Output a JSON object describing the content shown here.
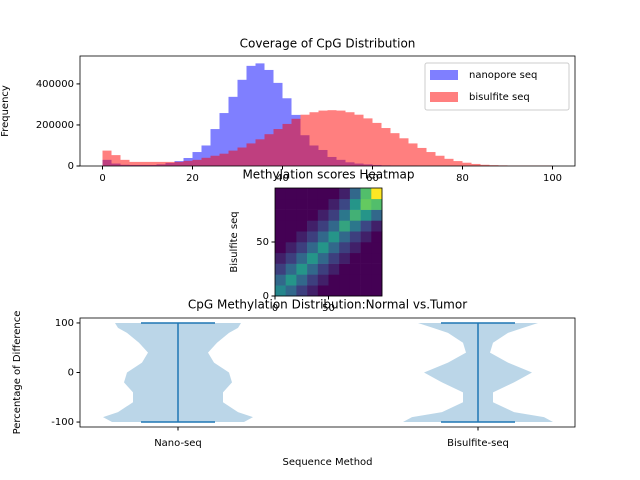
{
  "chart_data": [
    {
      "type": "histogram",
      "title": "Coverage of CpG Distribution",
      "xlabel": "Coverage of CpGs",
      "ylabel": "Frequency",
      "bins": [
        0,
        2,
        4,
        6,
        8,
        10,
        12,
        14,
        16,
        18,
        20,
        22,
        24,
        26,
        28,
        30,
        32,
        34,
        36,
        38,
        40,
        42,
        44,
        46,
        48,
        50,
        52,
        54,
        56,
        58,
        60,
        62,
        64,
        66,
        68,
        70,
        72,
        74,
        76,
        78,
        80,
        82,
        84,
        86,
        88,
        90,
        92,
        94,
        96,
        98,
        100
      ],
      "series": [
        {
          "name": "nanopore seq",
          "color": "blue",
          "values": [
            30000,
            12000,
            6000,
            5000,
            5000,
            5000,
            8000,
            15000,
            24000,
            39000,
            68000,
            100000,
            180000,
            258000,
            337000,
            420000,
            488000,
            500000,
            468000,
            405000,
            330000,
            249000,
            150000,
            100000,
            78000,
            44000,
            30000,
            18000,
            12000,
            8000,
            5000,
            3000,
            2000,
            1000,
            1000,
            0,
            0,
            0,
            0,
            0,
            0,
            0,
            0,
            0,
            0,
            0,
            0,
            0,
            0,
            0
          ]
        },
        {
          "name": "bisulfite seq",
          "color": "red",
          "values": [
            75000,
            53000,
            30000,
            20000,
            20000,
            20000,
            20000,
            20000,
            20000,
            25000,
            30000,
            40000,
            50000,
            60000,
            75000,
            90000,
            110000,
            130000,
            155000,
            180000,
            205000,
            230000,
            250000,
            262000,
            270000,
            272000,
            270000,
            262000,
            250000,
            232000,
            210000,
            185000,
            160000,
            135000,
            110000,
            88000,
            68000,
            50000,
            35000,
            24000,
            16000,
            10000,
            6000,
            4000,
            3000,
            2000,
            2000,
            2000,
            2000,
            2000
          ]
        }
      ],
      "xlim": [
        -5,
        105
      ],
      "xticks": [
        0,
        20,
        40,
        60,
        80,
        100
      ],
      "ylim": [
        0,
        536000
      ],
      "yticks": [
        0,
        200000,
        400000
      ],
      "legend": "upper right"
    },
    {
      "type": "heatmap",
      "title": "Methylation scores Heatmap",
      "ylabel": "Bisulfite seq",
      "xlim": [
        0,
        100
      ],
      "xticks": [
        0,
        50
      ],
      "ylim": [
        0,
        100
      ],
      "yticks": [
        0,
        50
      ],
      "z": [
        [
          0.5,
          0.4,
          0.28,
          0.2,
          0.12,
          0.12,
          0.12,
          0.12,
          0.12,
          0.12
        ],
        [
          0.4,
          0.55,
          0.4,
          0.28,
          0.2,
          0.12,
          0.12,
          0.12,
          0.12,
          0.12
        ],
        [
          0.28,
          0.4,
          0.55,
          0.4,
          0.28,
          0.2,
          0.12,
          0.12,
          0.12,
          0.12
        ],
        [
          0.2,
          0.28,
          0.4,
          0.55,
          0.4,
          0.28,
          0.2,
          0.12,
          0.12,
          0.12
        ],
        [
          0.12,
          0.2,
          0.28,
          0.4,
          0.55,
          0.4,
          0.28,
          0.2,
          0.12,
          0.12
        ],
        [
          0.12,
          0.12,
          0.2,
          0.28,
          0.4,
          0.55,
          0.4,
          0.28,
          0.2,
          0.12
        ],
        [
          0.12,
          0.12,
          0.12,
          0.2,
          0.28,
          0.4,
          0.6,
          0.45,
          0.3,
          0.2
        ],
        [
          0.12,
          0.12,
          0.12,
          0.12,
          0.2,
          0.28,
          0.45,
          0.65,
          0.55,
          0.4
        ],
        [
          0.12,
          0.12,
          0.12,
          0.12,
          0.12,
          0.2,
          0.3,
          0.55,
          0.75,
          0.7
        ],
        [
          0.12,
          0.12,
          0.12,
          0.12,
          0.12,
          0.12,
          0.2,
          0.4,
          0.7,
          0.95
        ]
      ],
      "colormap": "viridis"
    },
    {
      "type": "violin",
      "title": "CpG Methylation Distribution:Normal vs.Tumor",
      "xlabel": "Sequence Method",
      "ylabel": "Percentage of Difference",
      "categories": [
        "Nano-seq",
        "Bisulfite-seq"
      ],
      "color": "#1f77b4",
      "density_y": [
        -100,
        -90,
        -80,
        -60,
        -40,
        -20,
        0,
        20,
        40,
        60,
        80,
        90,
        100
      ],
      "violins": [
        {
          "widths": [
            0.22,
            0.25,
            0.2,
            0.15,
            0.15,
            0.18,
            0.17,
            0.12,
            0.1,
            0.13,
            0.17,
            0.2,
            0.21
          ],
          "min": -100,
          "max": 100
        },
        {
          "widths": [
            0.25,
            0.22,
            0.12,
            0.05,
            0.05,
            0.12,
            0.18,
            0.1,
            0.04,
            0.05,
            0.1,
            0.15,
            0.2
          ],
          "min": -100,
          "max": 100
        }
      ],
      "ylim": [
        -110,
        110
      ],
      "yticks": [
        -100,
        0,
        100
      ]
    }
  ]
}
